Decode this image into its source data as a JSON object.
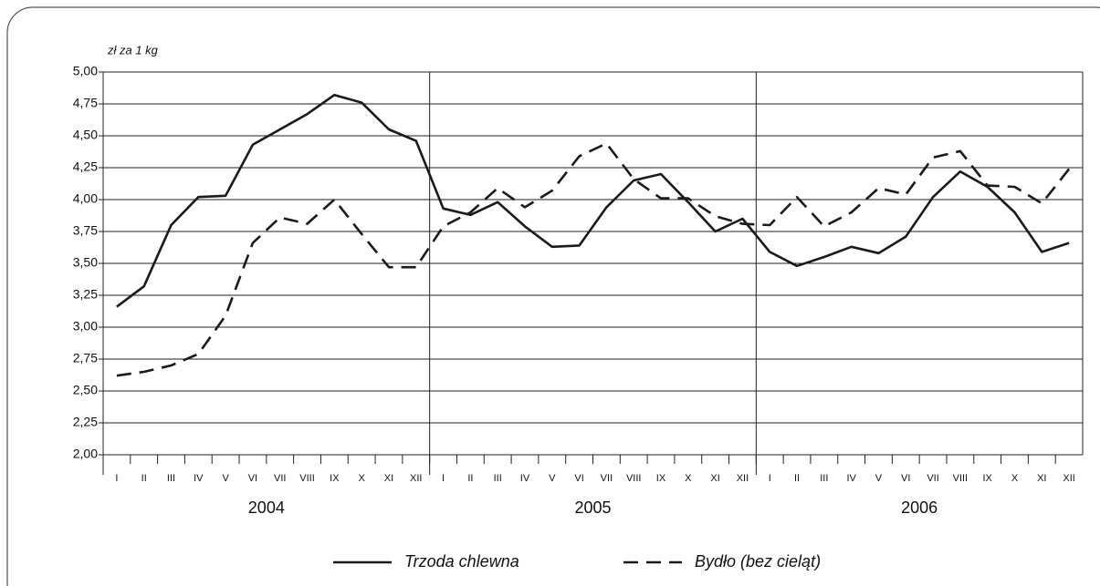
{
  "chart_data": {
    "type": "line",
    "ylabel": "zł za 1 kg",
    "categories": [
      "I",
      "II",
      "III",
      "IV",
      "V",
      "VI",
      "VII",
      "VIII",
      "IX",
      "X",
      "XI",
      "XII",
      "I",
      "II",
      "III",
      "IV",
      "V",
      "VI",
      "VII",
      "VIII",
      "IX",
      "X",
      "XI",
      "XII",
      "I",
      "II",
      "III",
      "IV",
      "V",
      "VI",
      "VII",
      "VIII",
      "IX",
      "X",
      "XI",
      "XII"
    ],
    "groups": [
      "2004",
      "2005",
      "2006"
    ],
    "series": [
      {
        "name": "Trzoda chlewna",
        "color": "#1a1a1a",
        "dash": false,
        "values": [
          3.16,
          3.32,
          3.8,
          4.02,
          4.03,
          4.43,
          4.55,
          4.67,
          4.82,
          4.76,
          4.55,
          4.46,
          3.93,
          3.88,
          3.98,
          3.79,
          3.63,
          3.64,
          3.94,
          4.15,
          4.2,
          3.98,
          3.75,
          3.85,
          3.59,
          3.48,
          3.55,
          3.63,
          3.58,
          3.71,
          4.02,
          4.22,
          4.1,
          3.9,
          3.59,
          3.66
        ]
      },
      {
        "name": "Bydło (bez cieląt)",
        "color": "#1a1a1a",
        "dash": true,
        "values": [
          2.62,
          2.65,
          2.7,
          2.79,
          3.09,
          3.66,
          3.86,
          3.81,
          4.0,
          3.73,
          3.47,
          3.47,
          3.79,
          3.9,
          4.09,
          3.94,
          4.07,
          4.34,
          4.44,
          4.16,
          4.01,
          4.01,
          3.87,
          3.81,
          3.8,
          4.02,
          3.79,
          3.9,
          4.09,
          4.04,
          4.33,
          4.38,
          4.11,
          4.1,
          3.97,
          4.24
        ]
      }
    ],
    "ylim": [
      2,
      5
    ],
    "yticks": [
      {
        "value": 2,
        "label": "2,00"
      },
      {
        "value": 2.25,
        "label": "2,25"
      },
      {
        "value": 2.5,
        "label": "2,50"
      },
      {
        "value": 2.75,
        "label": "2,75"
      },
      {
        "value": 3,
        "label": "3,00"
      },
      {
        "value": 3.25,
        "label": "3,25"
      },
      {
        "value": 3.5,
        "label": "3,50"
      },
      {
        "value": 3.75,
        "label": "3,75"
      },
      {
        "value": 4,
        "label": "4,00"
      },
      {
        "value": 4.25,
        "label": "4,25"
      },
      {
        "value": 4.5,
        "label": "4,50"
      },
      {
        "value": 4.75,
        "label": "4,75"
      },
      {
        "value": 5,
        "label": "5,00"
      }
    ],
    "grid": true
  }
}
